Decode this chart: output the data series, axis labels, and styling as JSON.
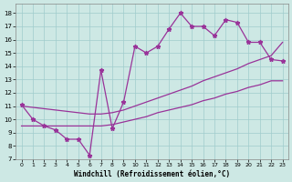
{
  "xlabel": "Windchill (Refroidissement éolien,°C)",
  "background_color": "#cde8e4",
  "line_color": "#993399",
  "xlim": [
    -0.5,
    23.5
  ],
  "ylim": [
    7,
    18.7
  ],
  "xticks": [
    0,
    1,
    2,
    3,
    4,
    5,
    6,
    7,
    8,
    9,
    10,
    11,
    12,
    13,
    14,
    15,
    16,
    17,
    18,
    19,
    20,
    21,
    22,
    23
  ],
  "yticks": [
    7,
    8,
    9,
    10,
    11,
    12,
    13,
    14,
    15,
    16,
    17,
    18
  ],
  "x_values": [
    0,
    1,
    2,
    3,
    4,
    5,
    6,
    7,
    8,
    9,
    10,
    11,
    12,
    13,
    14,
    15,
    16,
    17,
    18,
    19,
    20,
    21,
    22,
    23
  ],
  "y_top": [
    11.1,
    10.0,
    9.5,
    9.2,
    8.5,
    8.5,
    7.3,
    13.7,
    9.3,
    11.3,
    15.5,
    15.0,
    15.5,
    16.8,
    18.0,
    17.0,
    17.0,
    16.3,
    17.5,
    17.3,
    15.8,
    15.8,
    14.5,
    14.4
  ],
  "y_trend_upper": [
    11.0,
    10.9,
    10.8,
    10.7,
    10.6,
    10.5,
    10.4,
    10.4,
    10.5,
    10.7,
    11.0,
    11.3,
    11.6,
    11.9,
    12.2,
    12.5,
    12.9,
    13.2,
    13.5,
    13.8,
    14.2,
    14.5,
    14.8,
    15.8
  ],
  "y_trend_lower": [
    9.5,
    9.5,
    9.5,
    9.5,
    9.5,
    9.5,
    9.5,
    9.5,
    9.6,
    9.8,
    10.0,
    10.2,
    10.5,
    10.7,
    10.9,
    11.1,
    11.4,
    11.6,
    11.9,
    12.1,
    12.4,
    12.6,
    12.9,
    12.9
  ]
}
